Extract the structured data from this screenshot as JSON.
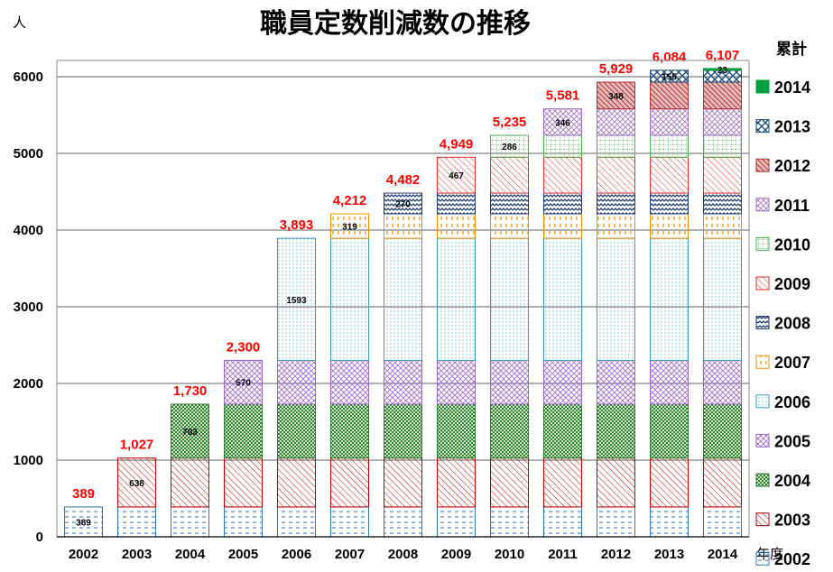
{
  "chart_data": {
    "type": "bar",
    "stacked": true,
    "title": "職員定数削減数の推移",
    "ylabel": "人",
    "xlabel": "年度",
    "ylim": [
      0,
      6000
    ],
    "yticks": [
      0,
      1000,
      2000,
      3000,
      4000,
      5000,
      6000
    ],
    "categories": [
      "2002",
      "2003",
      "2004",
      "2005",
      "2006",
      "2007",
      "2008",
      "2009",
      "2010",
      "2011",
      "2012",
      "2013",
      "2014"
    ],
    "totals": [
      "389",
      "1,027",
      "1,730",
      "2,300",
      "3,893",
      "4,212",
      "4,482",
      "4,949",
      "5,235",
      "5,581",
      "5,929",
      "6,084",
      "6,107"
    ],
    "legend_title": "累計",
    "legend_position": "right",
    "series": [
      {
        "name": "2002",
        "value": 389,
        "start_index": 0,
        "color": "#2f75b5",
        "pattern": "dash"
      },
      {
        "name": "2003",
        "value": 638,
        "start_index": 1,
        "color": "#c00000",
        "pattern": "diag"
      },
      {
        "name": "2004",
        "value": 703,
        "start_index": 2,
        "color": "#2e7d32",
        "pattern": "check"
      },
      {
        "name": "2005",
        "value": 570,
        "start_index": 3,
        "color": "#9966cc",
        "pattern": "cross"
      },
      {
        "name": "2006",
        "value": 1593,
        "start_index": 4,
        "color": "#3a9bbf",
        "pattern": "dots"
      },
      {
        "name": "2007",
        "value": 319,
        "start_index": 5,
        "color": "#f28c00",
        "pattern": "vdash"
      },
      {
        "name": "2008",
        "value": 270,
        "start_index": 6,
        "color": "#1f3a6e",
        "pattern": "wave"
      },
      {
        "name": "2009",
        "value": 467,
        "start_index": 7,
        "color": "#e03030",
        "pattern": "diag"
      },
      {
        "name": "2010",
        "value": 286,
        "start_index": 8,
        "color": "#4caf50",
        "pattern": "grid"
      },
      {
        "name": "2011",
        "value": 346,
        "start_index": 9,
        "color": "#a070c0",
        "pattern": "cross"
      },
      {
        "name": "2012",
        "value": 348,
        "start_index": 10,
        "color": "#b03030",
        "pattern": "solidhatch"
      },
      {
        "name": "2013",
        "value": 155,
        "start_index": 11,
        "color": "#1f4e79",
        "pattern": "bigcheck"
      },
      {
        "name": "2014",
        "value": 23,
        "start_index": 12,
        "color": "#00a040",
        "pattern": "solid"
      }
    ]
  }
}
